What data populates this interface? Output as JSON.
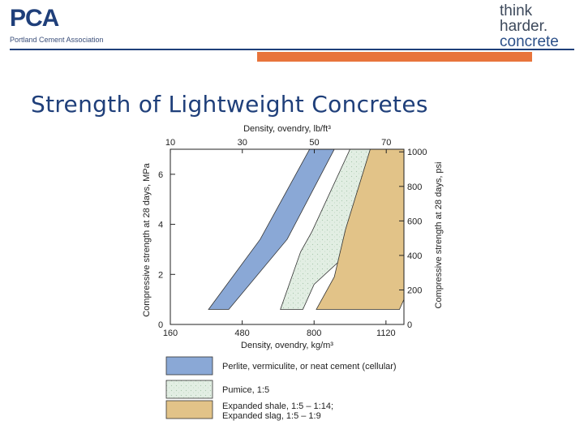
{
  "header": {
    "logo_mark": "PCA",
    "logo_subtitle": "Portland Cement Association",
    "brand_line1": "think",
    "brand_line2": "harder.",
    "brand_line3": "concrete",
    "accent_color": "#e8743b",
    "brand_color": "#1f3f7a"
  },
  "slide": {
    "title": "Strength of Lightweight Concretes"
  },
  "chart_data": {
    "type": "area",
    "title": "",
    "x_bottom_label": "Density, ovendry, kg/m³",
    "x_bottom_ticks": [
      "160",
      "480",
      "800",
      "1120"
    ],
    "x_top_label": "Density, ovendry, lb/ft³",
    "x_top_ticks": [
      "10",
      "30",
      "50",
      "70"
    ],
    "y_left_label": "Compressive strength at 28 days, MPa",
    "y_left_ticks": [
      "0",
      "2",
      "4",
      "6"
    ],
    "y_right_label": "Compressive strength at 28 days, psi",
    "y_right_ticks": [
      "0",
      "200",
      "400",
      "600",
      "800",
      "1000"
    ],
    "xlim": [
      160,
      1200
    ],
    "ylim_mpa": [
      0,
      7
    ],
    "grid": false,
    "legend_placement": "bottom",
    "series": [
      {
        "name": "Perlite, vermiculite, or neat cement (cellular)",
        "color": "#8aa8d6",
        "polygon": [
          [
            330,
            0.6
          ],
          [
            420,
            0.6
          ],
          [
            680,
            3.4
          ],
          [
            890,
            7.0
          ],
          [
            780,
            7.0
          ],
          [
            560,
            3.4
          ]
        ]
      },
      {
        "name": "Pumice, 1:5",
        "color": "#e2eee3",
        "polygon": [
          [
            650,
            0.6
          ],
          [
            750,
            0.6
          ],
          [
            800,
            1.6
          ],
          [
            1030,
            3.5
          ],
          [
            1180,
            7.0
          ],
          [
            960,
            7.0
          ],
          [
            790,
            3.7
          ],
          [
            740,
            2.9
          ]
        ]
      },
      {
        "name": "Expanded shale, 1:5 – 1:14; Expanded slag, 1:5 – 1:9",
        "legend_line1": "Expanded shale, 1:5 – 1:14;",
        "legend_line1_text": "Expanded shale, 1:5 – 1:14;",
        "legend_line2": "Expanded slag, 1:5 – 1:9",
        "color": "#e2c388",
        "polygon": [
          [
            810,
            0.6
          ],
          [
            1180,
            0.6
          ],
          [
            1200,
            1.0
          ],
          [
            1200,
            5.1
          ],
          [
            1210,
            7.0
          ],
          [
            1050,
            7.0
          ],
          [
            940,
            3.8
          ],
          [
            890,
            1.9
          ]
        ]
      }
    ]
  },
  "legend": {
    "item1": "Perlite, vermiculite, or neat cement (cellular)",
    "item2": "Pumice, 1:5",
    "item3_line1": "Expanded shale, 1:5 – 1:14;",
    "item3_line2": "Expanded slag, 1:5 – 1:9"
  }
}
